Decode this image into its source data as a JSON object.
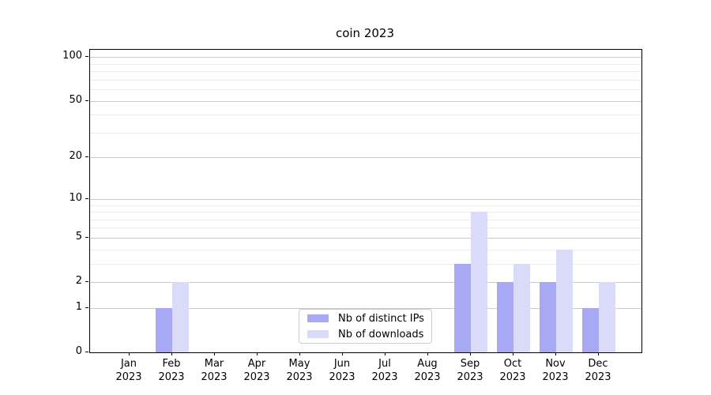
{
  "title": "coin 2023",
  "chart_data": {
    "type": "bar",
    "title": "coin 2023",
    "categories": [
      "Jan 2023",
      "Feb 2023",
      "Mar 2023",
      "Apr 2023",
      "May 2023",
      "Jun 2023",
      "Jul 2023",
      "Aug 2023",
      "Sep 2023",
      "Oct 2023",
      "Nov 2023",
      "Dec 2023"
    ],
    "series": [
      {
        "name": "Nb of distinct IPs",
        "color": "#a7a9f4",
        "values": [
          0,
          1,
          0,
          0,
          0,
          0,
          0,
          0,
          3,
          2,
          2,
          1
        ]
      },
      {
        "name": "Nb of downloads",
        "color": "#d9dbf8",
        "values": [
          0,
          2,
          0,
          0,
          0,
          0,
          0,
          0,
          8,
          3,
          4,
          2
        ]
      }
    ],
    "xlabel": "",
    "ylabel": "",
    "yscale": "log1p",
    "ylim": [
      0,
      112
    ],
    "yticks": [
      0,
      1,
      2,
      5,
      10,
      20,
      50,
      100
    ],
    "yticks_minor": [
      3,
      4,
      6,
      7,
      8,
      9,
      30,
      40,
      60,
      70,
      80,
      90
    ],
    "grid": "horizontal",
    "legend_position": "lower center"
  }
}
